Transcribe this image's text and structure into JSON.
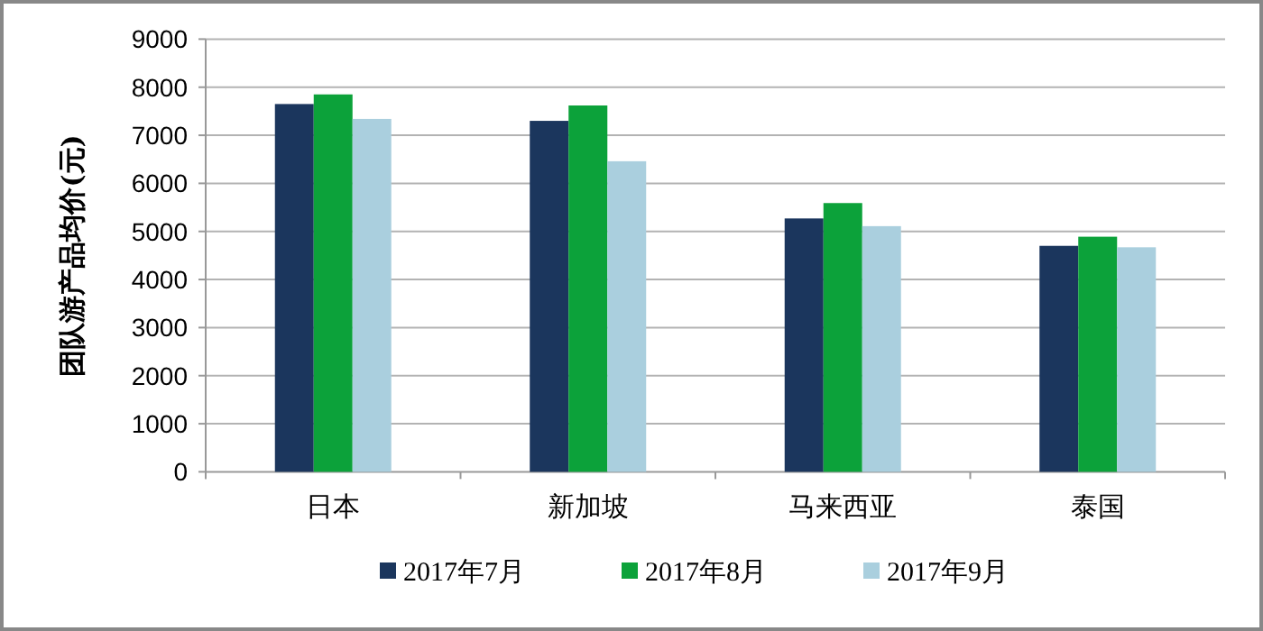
{
  "chart_data": {
    "type": "bar",
    "ylabel": "团队游产品均价(元)",
    "categories": [
      "日本",
      "新加坡",
      "马来西亚",
      "泰国"
    ],
    "series": [
      {
        "name": "2017年7月",
        "color": "#1b365d",
        "values": [
          7650,
          7300,
          5270,
          4700
        ]
      },
      {
        "name": "2017年8月",
        "color": "#0ca23a",
        "values": [
          7850,
          7620,
          5590,
          4890
        ]
      },
      {
        "name": "2017年9月",
        "color": "#aacfde",
        "values": [
          7340,
          6460,
          5110,
          4670
        ]
      }
    ],
    "ylim": [
      0,
      9000
    ],
    "yticks": [
      0,
      1000,
      2000,
      3000,
      4000,
      5000,
      6000,
      7000,
      8000,
      9000
    ],
    "grid": "y",
    "legend": "bottom"
  }
}
